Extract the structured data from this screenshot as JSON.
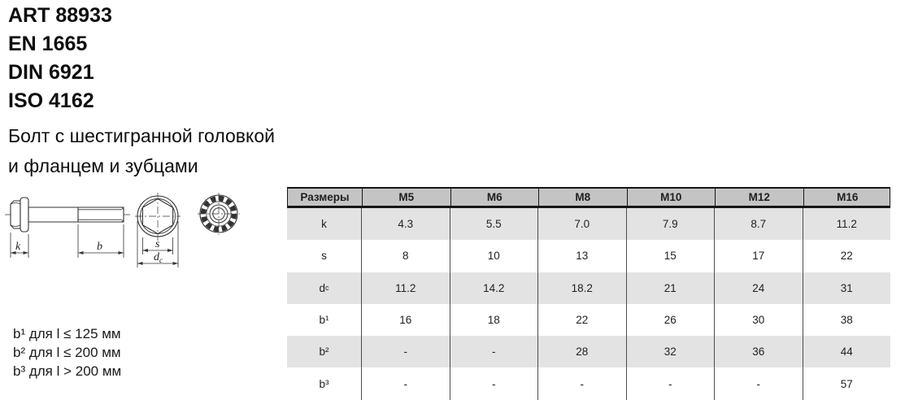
{
  "standards": {
    "items": [
      "ART 88933",
      "EN 1665",
      "DIN 6921",
      "ISO 4162"
    ]
  },
  "title": {
    "line1": "Болт с шестигранной головкой",
    "line2": "и фланцем и зубцами"
  },
  "drawing": {
    "labels": {
      "k": "k",
      "b": "b",
      "s": "s",
      "dc_base": "d",
      "dc_sub": "c"
    }
  },
  "footnotes": {
    "items": [
      "b¹ для l ≤ 125 мм",
      "b² для l ≤ 200 мм",
      "b³ для l > 200 мм"
    ]
  },
  "table": {
    "size_header": "Размеры",
    "columns": [
      "M5",
      "M6",
      "M8",
      "M10",
      "M12",
      "M16"
    ],
    "rows": [
      {
        "label": "k",
        "values": [
          "4.3",
          "5.5",
          "7.0",
          "7.9",
          "8.7",
          "11.2"
        ]
      },
      {
        "label": "s",
        "values": [
          "8",
          "10",
          "13",
          "15",
          "17",
          "22"
        ]
      },
      {
        "label": "d",
        "label_sub": "c",
        "values": [
          "11.2",
          "14.2",
          "18.2",
          "21",
          "24",
          "31"
        ]
      },
      {
        "label": "b¹",
        "values": [
          "16",
          "18",
          "22",
          "26",
          "30",
          "38"
        ]
      },
      {
        "label": "b²",
        "values": [
          "-",
          "-",
          "28",
          "32",
          "36",
          "44"
        ]
      },
      {
        "label": "b³",
        "values": [
          "-",
          "-",
          "-",
          "-",
          "-",
          "57"
        ]
      }
    ],
    "colors": {
      "header_bg": "#c4c4c4",
      "alt_row_bg": "#e3e3e3",
      "grid_line": "#4d4d4d",
      "border_dark": "#161616"
    }
  }
}
